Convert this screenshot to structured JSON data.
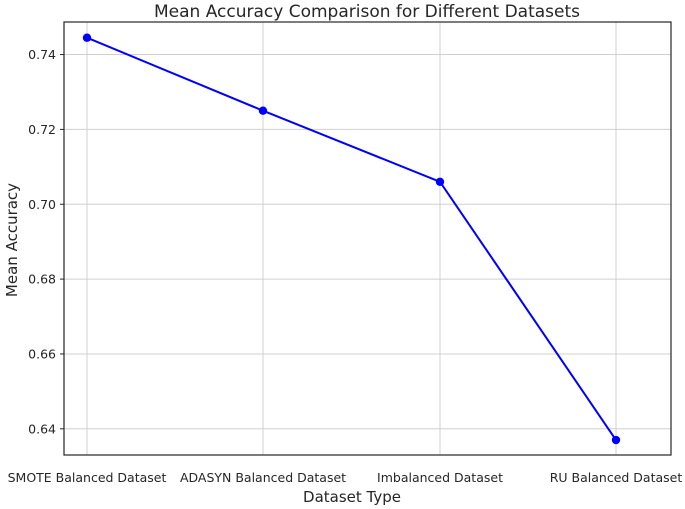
{
  "chart_data": {
    "type": "line",
    "title": "Mean Accuracy Comparison for Different Datasets",
    "xlabel": "Dataset Type",
    "ylabel": "Mean Accuracy",
    "categories": [
      "SMOTE Balanced Dataset",
      "ADASYN Balanced Dataset",
      "Imbalanced Dataset",
      "RU Balanced Dataset"
    ],
    "series": [
      {
        "values": [
          0.7445,
          0.725,
          0.706,
          0.637
        ],
        "color": "#0000ff",
        "marker": "circle"
      }
    ],
    "ylim": [
      0.633,
      0.7487
    ],
    "yticks": [
      "0.64",
      "0.66",
      "0.68",
      "0.70",
      "0.72",
      "0.74"
    ],
    "grid": true,
    "legend": "none"
  }
}
